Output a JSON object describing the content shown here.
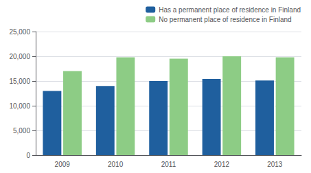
{
  "chart_data": {
    "type": "bar",
    "categories": [
      "2009",
      "2010",
      "2011",
      "2012",
      "2013"
    ],
    "series": [
      {
        "name": "Has a permanent place of residence in Finland",
        "color": "#1f5f9e",
        "values": [
          13000,
          14000,
          15000,
          15400,
          15100
        ]
      },
      {
        "name": "No permanent place of residence in Finland",
        "color": "#8dcc85",
        "values": [
          17000,
          19800,
          19500,
          20000,
          19800
        ]
      }
    ],
    "ylim": [
      0,
      25000
    ],
    "yticks": [
      0,
      {
        "value": 5000,
        "label": "5,000"
      },
      {
        "value": 10000,
        "label": "10,000"
      },
      {
        "value": 15000,
        "label": "15,000"
      },
      {
        "value": 20000,
        "label": "20,000"
      },
      {
        "value": 25000,
        "label": "25,000"
      }
    ],
    "grid": true,
    "legend": "upper right"
  }
}
